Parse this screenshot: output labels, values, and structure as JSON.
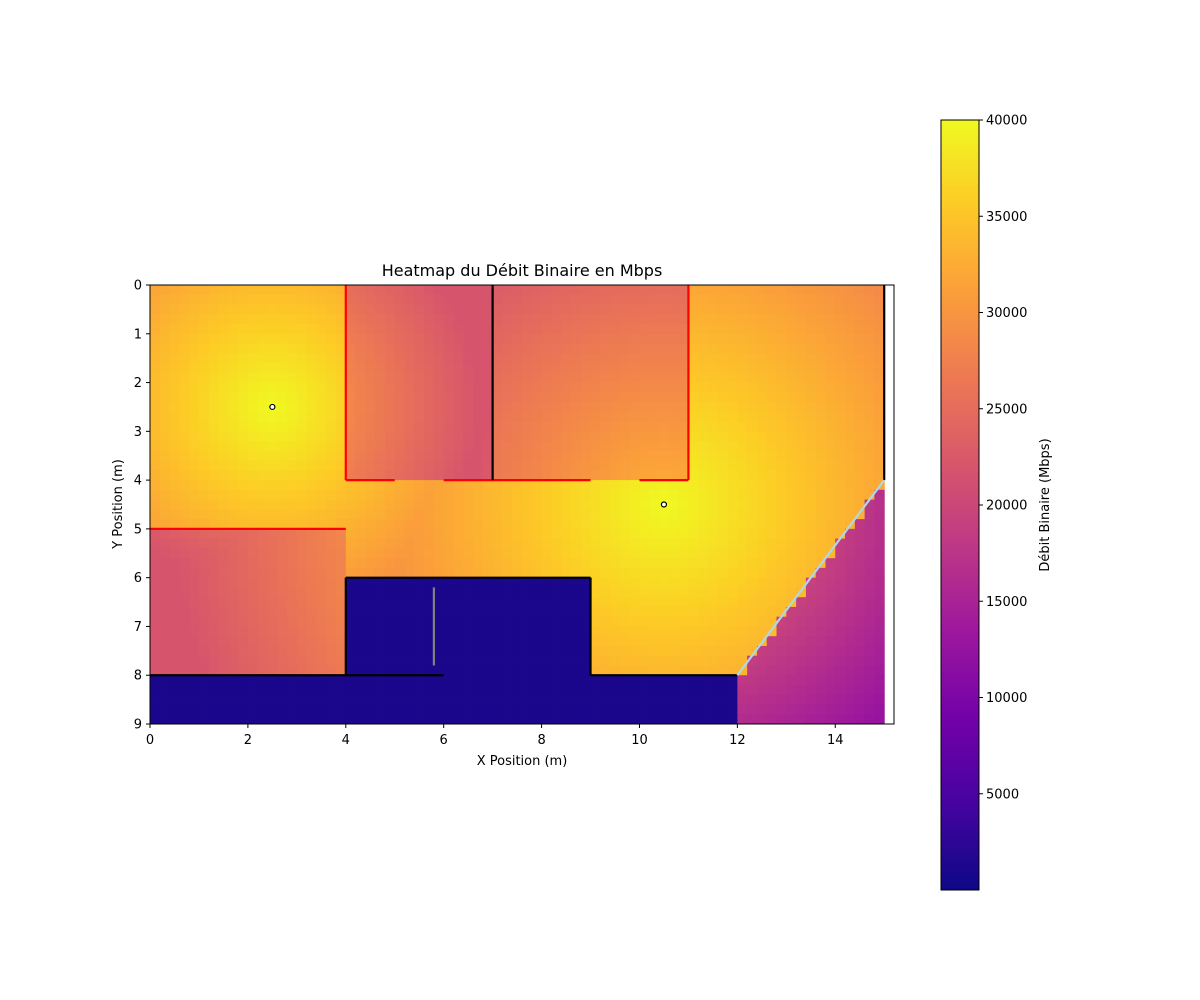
{
  "chart_data": {
    "type": "heatmap",
    "title": "Heatmap du Débit Binaire en Mbps",
    "xlabel": "X Position (m)",
    "ylabel": "Y Position (m)",
    "xlim": [
      0,
      15.2
    ],
    "ylim": [
      0,
      9
    ],
    "y_inverted": true,
    "grid": false,
    "x_ticks": [
      0,
      2,
      4,
      6,
      8,
      10,
      12,
      14
    ],
    "x_tick_labels": [
      "0",
      "2",
      "4",
      "6",
      "8",
      "10",
      "12",
      "14"
    ],
    "y_ticks": [
      0,
      1,
      2,
      3,
      4,
      5,
      6,
      7,
      8,
      9
    ],
    "y_tick_labels": [
      "0",
      "1",
      "2",
      "3",
      "4",
      "5",
      "6",
      "7",
      "8",
      "9"
    ],
    "grid_extent": {
      "x": [
        0,
        15
      ],
      "y": [
        0,
        9
      ]
    },
    "grid_resolution": 0.2,
    "colormap": "plasma",
    "colorbar": {
      "label": "Débit Binaire (Mbps)",
      "range": [
        0,
        40000
      ],
      "ticks": [
        5000,
        10000,
        15000,
        20000,
        25000,
        30000,
        35000,
        40000
      ],
      "tick_labels": [
        "5000",
        "10000",
        "15000",
        "20000",
        "25000",
        "30000",
        "35000",
        "40000"
      ],
      "stops": [
        "#0d0887",
        "#46039f",
        "#7201a8",
        "#9c179e",
        "#bd3786",
        "#d8576b",
        "#ed7953",
        "#fb9f3a",
        "#fdca26",
        "#f0f921"
      ]
    },
    "access_points": [
      {
        "x": 2.5,
        "y": 2.5
      },
      {
        "x": 10.5,
        "y": 4.5
      }
    ],
    "walls": [
      {
        "x1": 4,
        "y1": 0,
        "x2": 4,
        "y2": 4,
        "color": "#ff0000"
      },
      {
        "x1": 4,
        "y1": 4,
        "x2": 5,
        "y2": 4,
        "color": "#ff0000"
      },
      {
        "x1": 6,
        "y1": 4,
        "x2": 9,
        "y2": 4,
        "color": "#ff0000"
      },
      {
        "x1": 7,
        "y1": 0,
        "x2": 7,
        "y2": 4,
        "color": "#000000"
      },
      {
        "x1": 11,
        "y1": 0,
        "x2": 11,
        "y2": 4,
        "color": "#ff0000"
      },
      {
        "x1": 10,
        "y1": 4,
        "x2": 11,
        "y2": 4,
        "color": "#ff0000"
      },
      {
        "x1": 0,
        "y1": 5,
        "x2": 4,
        "y2": 5,
        "color": "#ff0000"
      },
      {
        "x1": 15,
        "y1": 0,
        "x2": 15,
        "y2": 4,
        "color": "#000000"
      },
      {
        "x1": 4,
        "y1": 6,
        "x2": 9,
        "y2": 6,
        "color": "#000000"
      },
      {
        "x1": 4,
        "y1": 6,
        "x2": 4,
        "y2": 8,
        "color": "#000000"
      },
      {
        "x1": 9,
        "y1": 6,
        "x2": 9,
        "y2": 8,
        "color": "#000000"
      },
      {
        "x1": 0,
        "y1": 8,
        "x2": 6,
        "y2": 8,
        "color": "#000000"
      },
      {
        "x1": 9,
        "y1": 8,
        "x2": 12,
        "y2": 8,
        "color": "#000000"
      },
      {
        "x1": 5.8,
        "y1": 6.2,
        "x2": 5.8,
        "y2": 7.8,
        "color": "#808080"
      },
      {
        "x1": 12,
        "y1": 8,
        "x2": 15,
        "y2": 4,
        "color": "#add8e6"
      }
    ]
  }
}
